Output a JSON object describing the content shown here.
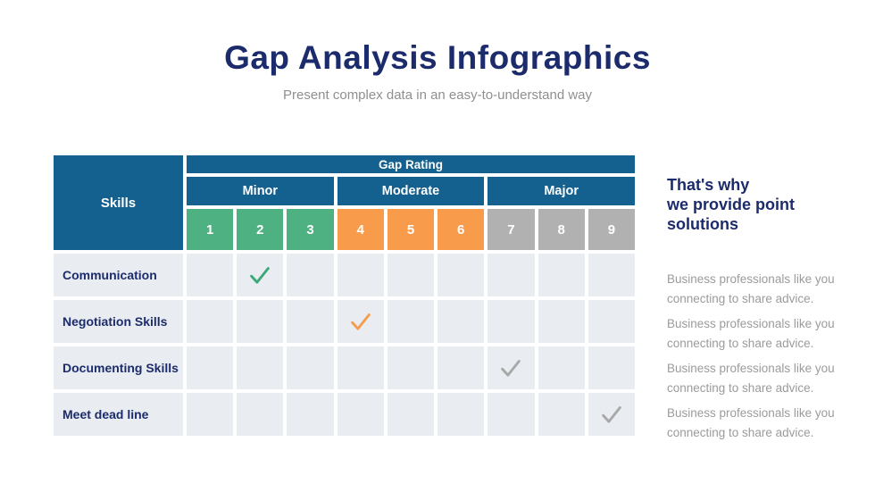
{
  "page": {
    "title": "Gap Analysis Infographics",
    "subtitle": "Present complex data in an easy-to-understand way"
  },
  "table": {
    "skills_header": "Skills",
    "gap_rating_header": "Gap Rating",
    "groups": [
      {
        "label": "Minor",
        "color": "#4db181"
      },
      {
        "label": "Moderate",
        "color": "#f89c4c"
      },
      {
        "label": "Major",
        "color": "#b1b1b1"
      }
    ],
    "ratings": [
      {
        "value": "1",
        "group": "minor"
      },
      {
        "value": "2",
        "group": "minor"
      },
      {
        "value": "3",
        "group": "minor"
      },
      {
        "value": "4",
        "group": "moderate"
      },
      {
        "value": "5",
        "group": "moderate"
      },
      {
        "value": "6",
        "group": "moderate"
      },
      {
        "value": "7",
        "group": "major"
      },
      {
        "value": "8",
        "group": "major"
      },
      {
        "value": "9",
        "group": "major"
      }
    ],
    "rows": [
      {
        "skill": "Communication",
        "check_rating": 2,
        "check_color": "#3aa877"
      },
      {
        "skill": "Negotiation Skills",
        "check_rating": 4,
        "check_color": "#f59d4c"
      },
      {
        "skill": "Documenting Skills",
        "check_rating": 7,
        "check_color": "#a8a8a8"
      },
      {
        "skill": "Meet dead line",
        "check_rating": 9,
        "check_color": "#a8a8a8"
      }
    ]
  },
  "sidebar": {
    "heading": "That's why\nwe provide point\nsolutions",
    "notes": [
      "Business professionals like you\nconnecting to share advice.",
      "Business professionals like you\nconnecting to share advice.",
      "Business professionals like you\nconnecting to share advice.",
      "Business professionals like you\nconnecting to share advice."
    ]
  },
  "colors": {
    "title_navy": "#1c2b6b",
    "header_blue": "#14618f",
    "minor_green": "#4db181",
    "moderate_orange": "#f89c4c",
    "major_gray": "#b1b1b1",
    "cell_background": "#e9edf2",
    "subtitle_gray": "#8f8f8f",
    "note_gray": "#9b9b9b"
  },
  "chart_data": {
    "type": "table",
    "title": "Gap Analysis Infographics",
    "subtitle": "Present complex data in an easy-to-understand way",
    "columns": [
      "Skills",
      "1",
      "2",
      "3",
      "4",
      "5",
      "6",
      "7",
      "8",
      "9"
    ],
    "column_groups": [
      {
        "label": "Minor",
        "ratings": [
          1,
          2,
          3
        ]
      },
      {
        "label": "Moderate",
        "ratings": [
          4,
          5,
          6
        ]
      },
      {
        "label": "Major",
        "ratings": [
          7,
          8,
          9
        ]
      }
    ],
    "rows": [
      {
        "skill": "Communication",
        "gap_rating": 2,
        "severity": "Minor"
      },
      {
        "skill": "Negotiation Skills",
        "gap_rating": 4,
        "severity": "Moderate"
      },
      {
        "skill": "Documenting Skills",
        "gap_rating": 7,
        "severity": "Major"
      },
      {
        "skill": "Meet dead line",
        "gap_rating": 9,
        "severity": "Major"
      }
    ]
  }
}
